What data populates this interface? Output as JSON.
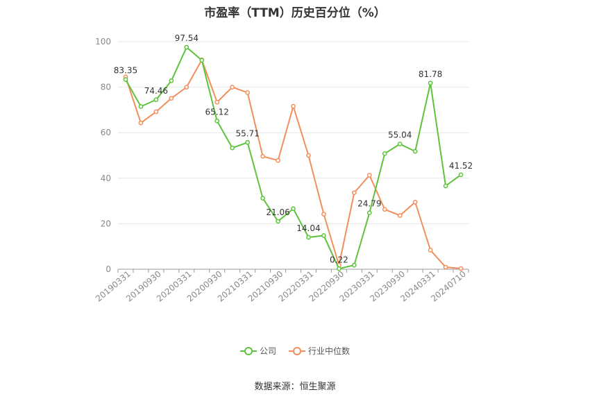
{
  "chart_data": {
    "type": "line",
    "title": "市盈率（TTM）历史百分位（%）",
    "source": "数据来源：恒生聚源",
    "ylim": [
      0,
      100
    ],
    "yticks": [
      0,
      20,
      40,
      60,
      80,
      100
    ],
    "x_tick_labels": [
      "20190331",
      "20190930",
      "20200331",
      "20200930",
      "20210331",
      "20210930",
      "20220331",
      "20220930",
      "20230331",
      "20230930",
      "20240331",
      "20240710"
    ],
    "grid": true,
    "legend_position": "bottom",
    "series": [
      {
        "name": "公司",
        "color": "#5dc33a",
        "values": [
          83.35,
          71.5,
          74.46,
          82.8,
          97.54,
          91.8,
          65.12,
          53.3,
          55.71,
          31.2,
          21.06,
          26.6,
          14.04,
          14.8,
          0.22,
          1.8,
          24.79,
          50.8,
          55.04,
          51.8,
          81.78,
          36.6,
          41.52
        ],
        "labeled_points": {
          "0": "83.35",
          "2": "74.46",
          "4": "97.54",
          "6": "65.12",
          "8": "55.71",
          "10": "21.06",
          "12": "14.04",
          "14": "0.22",
          "16": "24.79",
          "18": "55.04",
          "20": "81.78",
          "22": "41.52"
        }
      },
      {
        "name": "行业中位数",
        "color": "#f28e5b",
        "values": [
          84.5,
          64.3,
          69.2,
          75.1,
          80.0,
          92.0,
          73.4,
          80.0,
          77.6,
          49.6,
          47.8,
          71.6,
          50.0,
          24.2,
          1.8,
          33.6,
          41.3,
          26.3,
          23.6,
          29.5,
          8.4,
          0.9,
          0.3
        ],
        "labeled_points": {}
      }
    ]
  }
}
